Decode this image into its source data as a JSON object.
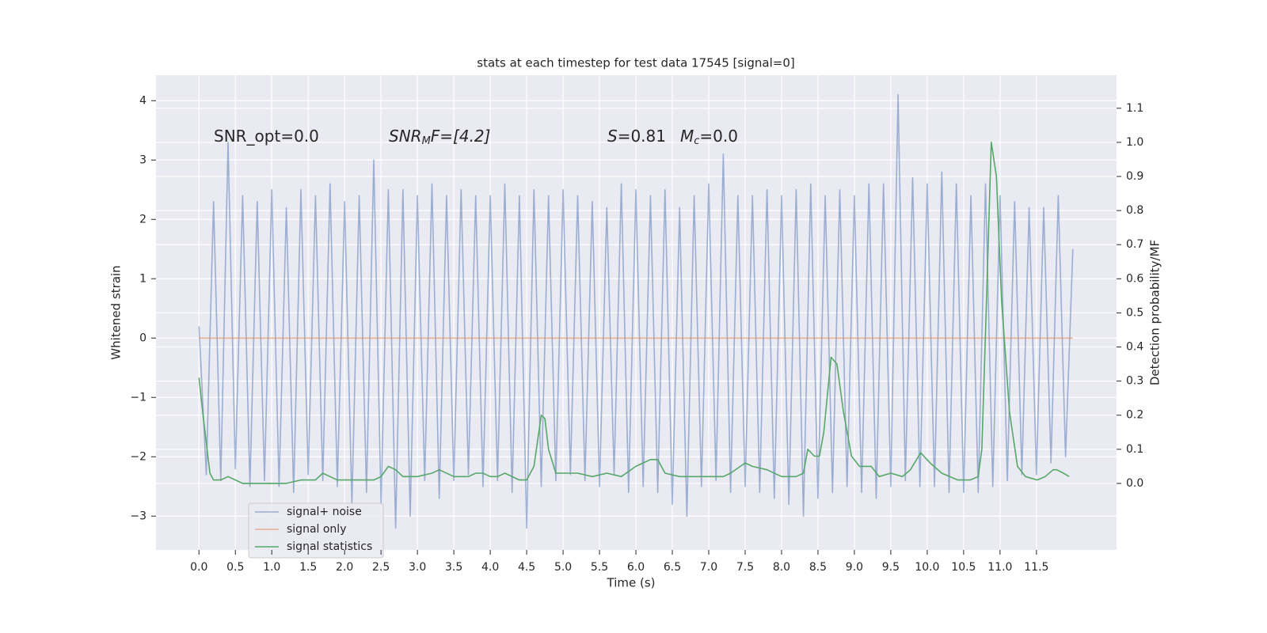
{
  "chart_data": {
    "type": "line",
    "title": "stats at each timestep for test data 17545 [signal=0]",
    "xlabel": "Time (s)",
    "ylabel": "Whitened strain",
    "y2label": "Detection probability/MF",
    "annotations": [
      {
        "parts": [
          "SNR_opt=0.0"
        ]
      },
      {
        "parts": [
          "SNR",
          "M",
          "F=[4.2]"
        ]
      },
      {
        "parts": [
          "S",
          "=0.81"
        ]
      },
      {
        "parts": [
          "M",
          "c",
          "=0.0"
        ]
      }
    ],
    "xlim": [
      -0.59,
      12.6
    ],
    "xticks": [
      {
        "value": 0,
        "label": "0.0"
      },
      0.5,
      {
        "value": 1,
        "label": "1.0"
      },
      1.5,
      {
        "value": 2,
        "label": "2.0"
      },
      2.5,
      {
        "value": 3,
        "label": "3.0"
      },
      3.5,
      {
        "value": 4,
        "label": "4.0"
      },
      4.5,
      {
        "value": 5,
        "label": "5.0"
      },
      5.5,
      {
        "value": 6,
        "label": "6.0"
      },
      6.5,
      {
        "value": 7,
        "label": "7.0"
      },
      7.5,
      {
        "value": 8,
        "label": "8.0"
      },
      8.5,
      {
        "value": 9,
        "label": "9.0"
      },
      9.5,
      {
        "value": 10,
        "label": "10.0"
      },
      10.5,
      {
        "value": 11,
        "label": "11.0"
      },
      11.5
    ],
    "ylim": [
      -3.57,
      4.43
    ],
    "yticks": [
      {
        "value": -3,
        "label": "−3"
      },
      {
        "value": -2,
        "label": "−2"
      },
      {
        "value": -1,
        "label": "−1"
      },
      0,
      1,
      2,
      3,
      4
    ],
    "y2lim": [
      -0.195,
      1.197
    ],
    "y2ticks": [
      {
        "value": 0,
        "label": "0.0"
      },
      0.1,
      0.2,
      0.3,
      0.4,
      0.5,
      0.6,
      0.7,
      0.8,
      0.9,
      {
        "value": 1,
        "label": "1.0"
      },
      1.1
    ],
    "grid": true,
    "legend": "lower left",
    "series": [
      {
        "name": "signal+ noise",
        "color": "#4c72b0",
        "opacity": 0.5,
        "x": [
          0.0,
          0.1,
          0.2,
          0.3,
          0.4,
          0.5,
          0.6,
          0.7,
          0.8,
          0.9,
          1.0,
          1.1,
          1.2,
          1.3,
          1.4,
          1.5,
          1.6,
          1.7,
          1.8,
          1.9,
          2.0,
          2.1,
          2.2,
          2.3,
          2.4,
          2.5,
          2.6,
          2.7,
          2.8,
          2.9,
          3.0,
          3.1,
          3.2,
          3.3,
          3.4,
          3.5,
          3.6,
          3.7,
          3.8,
          3.9,
          4.0,
          4.1,
          4.2,
          4.3,
          4.4,
          4.5,
          4.6,
          4.7,
          4.8,
          4.9,
          5.0,
          5.1,
          5.2,
          5.3,
          5.4,
          5.5,
          5.6,
          5.7,
          5.8,
          5.9,
          6.0,
          6.1,
          6.2,
          6.3,
          6.4,
          6.5,
          6.6,
          6.7,
          6.8,
          6.9,
          7.0,
          7.1,
          7.2,
          7.3,
          7.4,
          7.5,
          7.6,
          7.7,
          7.8,
          7.9,
          8.0,
          8.1,
          8.2,
          8.3,
          8.4,
          8.5,
          8.6,
          8.7,
          8.8,
          8.9,
          9.0,
          9.1,
          9.2,
          9.3,
          9.4,
          9.5,
          9.6,
          9.7,
          9.8,
          9.9,
          10.0,
          10.1,
          10.2,
          10.3,
          10.4,
          10.5,
          10.6,
          10.7,
          10.8,
          10.9,
          11.0,
          11.1,
          11.2,
          11.3,
          11.4,
          11.5,
          11.6,
          11.7,
          11.8,
          11.9,
          12.0
        ],
        "values": [
          0.2,
          -2.3,
          2.3,
          -2.4,
          3.3,
          -2.2,
          2.4,
          -2.5,
          2.3,
          -2.4,
          2.5,
          -2.5,
          2.2,
          -2.6,
          2.5,
          -2.3,
          2.4,
          -2.4,
          2.6,
          -2.5,
          2.3,
          -2.8,
          2.4,
          -2.6,
          3.0,
          -2.8,
          2.5,
          -3.2,
          2.5,
          -3.0,
          2.4,
          -2.4,
          2.6,
          -2.7,
          2.4,
          -2.4,
          2.5,
          -2.3,
          2.4,
          -2.5,
          2.4,
          -2.4,
          2.6,
          -2.6,
          2.4,
          -3.2,
          2.5,
          -2.5,
          2.4,
          -2.4,
          2.5,
          -2.3,
          2.4,
          -2.4,
          2.3,
          -2.5,
          2.2,
          -2.3,
          2.6,
          -2.6,
          2.5,
          -2.5,
          2.4,
          -2.6,
          2.5,
          -2.8,
          2.2,
          -3.0,
          2.4,
          -2.5,
          2.6,
          -2.4,
          3.1,
          -2.6,
          2.4,
          -2.5,
          2.4,
          -2.6,
          2.5,
          -2.7,
          2.4,
          -2.8,
          2.5,
          -3.0,
          2.6,
          -2.7,
          2.4,
          -2.6,
          2.5,
          -2.5,
          2.4,
          -2.6,
          2.6,
          -2.7,
          2.6,
          -2.5,
          4.1,
          -2.4,
          2.7,
          -2.5,
          2.6,
          -2.5,
          2.8,
          -2.6,
          2.6,
          -2.6,
          2.4,
          -2.6,
          2.6,
          -2.5,
          2.4,
          -2.4,
          2.3,
          -2.3,
          2.2,
          -2.3,
          2.2,
          -2.1,
          2.4,
          -2.0,
          1.5
        ]
      },
      {
        "name": "signal only",
        "color": "#dd8452",
        "opacity": 0.6,
        "x": [
          0.0,
          12.0
        ],
        "values": [
          0,
          0
        ]
      },
      {
        "name": "signal statistics",
        "color": "#55a868",
        "opacity": 1,
        "axis": "y2",
        "x": [
          0.0,
          0.05,
          0.1,
          0.15,
          0.2,
          0.3,
          0.4,
          0.5,
          0.6,
          0.8,
          1.0,
          1.2,
          1.4,
          1.6,
          1.7,
          1.8,
          1.9,
          2.0,
          2.2,
          2.4,
          2.5,
          2.6,
          2.7,
          2.8,
          3.0,
          3.2,
          3.3,
          3.5,
          3.7,
          3.8,
          3.9,
          4.0,
          4.1,
          4.2,
          4.4,
          4.5,
          4.6,
          4.7,
          4.75,
          4.8,
          4.9,
          5.0,
          5.2,
          5.4,
          5.6,
          5.8,
          6.0,
          6.2,
          6.3,
          6.4,
          6.6,
          6.8,
          7.0,
          7.2,
          7.3,
          7.5,
          7.6,
          7.8,
          8.0,
          8.2,
          8.3,
          8.36,
          8.45,
          8.52,
          8.58,
          8.68,
          8.76,
          8.85,
          8.96,
          9.07,
          9.23,
          9.34,
          9.5,
          9.66,
          9.77,
          9.91,
          10.04,
          10.2,
          10.42,
          10.59,
          10.7,
          10.75,
          10.8,
          10.88,
          10.95,
          11.02,
          11.13,
          11.24,
          11.35,
          11.51,
          11.62,
          11.73,
          11.78,
          11.87,
          11.95
        ],
        "values": [
          0.31,
          0.21,
          0.12,
          0.03,
          0.01,
          0.01,
          0.02,
          0.01,
          0.0,
          0.0,
          0.0,
          0.0,
          0.01,
          0.01,
          0.03,
          0.02,
          0.01,
          0.01,
          0.01,
          0.01,
          0.02,
          0.05,
          0.04,
          0.02,
          0.02,
          0.03,
          0.04,
          0.02,
          0.02,
          0.03,
          0.03,
          0.02,
          0.02,
          0.03,
          0.01,
          0.01,
          0.05,
          0.2,
          0.19,
          0.1,
          0.03,
          0.03,
          0.03,
          0.02,
          0.03,
          0.02,
          0.05,
          0.07,
          0.07,
          0.03,
          0.02,
          0.02,
          0.02,
          0.02,
          0.03,
          0.06,
          0.05,
          0.04,
          0.02,
          0.02,
          0.03,
          0.1,
          0.08,
          0.08,
          0.15,
          0.37,
          0.35,
          0.21,
          0.08,
          0.05,
          0.05,
          0.02,
          0.03,
          0.02,
          0.04,
          0.09,
          0.06,
          0.03,
          0.01,
          0.01,
          0.02,
          0.1,
          0.44,
          1.0,
          0.9,
          0.54,
          0.21,
          0.05,
          0.02,
          0.01,
          0.02,
          0.04,
          0.04,
          0.03,
          0.02
        ]
      }
    ]
  }
}
